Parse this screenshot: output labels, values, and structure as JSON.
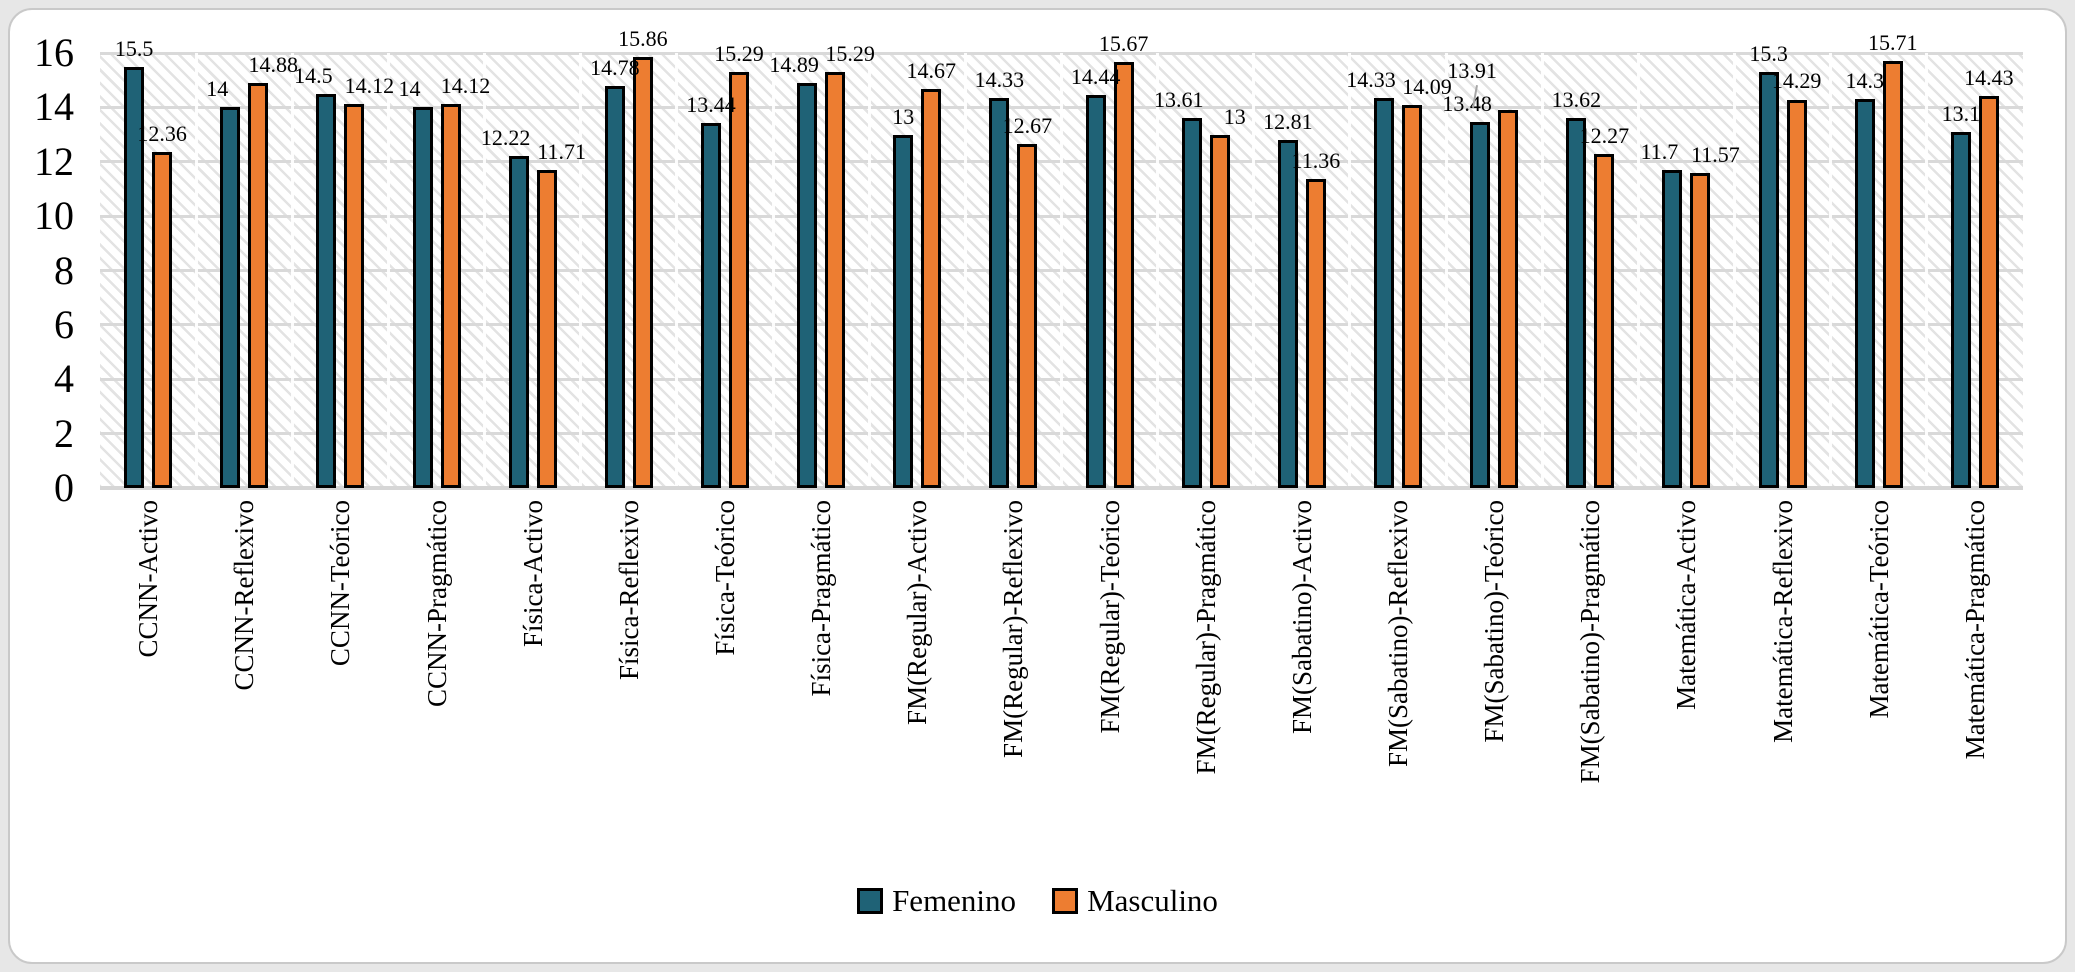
{
  "panel": {
    "background": "#ffffff",
    "outer_background": "#e7e7e7",
    "border_color": "#c9c9c9"
  },
  "chart_data": {
    "type": "bar",
    "title": "",
    "xlabel": "",
    "ylabel": "",
    "categories": [
      "CCNN-Activo",
      "CCNN-Reflexivo",
      "CCNN-Teórico",
      "CCNN-Pragmático",
      "Física-Activo",
      "Física-Reflexivo",
      "Física-Teórico",
      "Física-Pragmático",
      "FM(Regular)-Activo",
      "FM(Regular)-Reflexivo",
      "FM(Regular)-Teórico",
      "FM(Regular)-Pragmático",
      "FM(Sabatino)-Activo",
      "FM(Sabatino)-Reflexivo",
      "FM(Sabatino)-Teórico",
      "FM(Sabatino)-Pragmático",
      "Matemática-Activo",
      "Matemática-Reflexivo",
      "Matemática-Teórico",
      "Matemática-Pragmático"
    ],
    "series": [
      {
        "name": "Femenino",
        "color": "#1f6276",
        "values": [
          15.5,
          14,
          14.5,
          14,
          12.22,
          14.78,
          13.44,
          14.89,
          13,
          14.33,
          14.44,
          13.61,
          12.81,
          14.33,
          13.48,
          13.62,
          11.7,
          15.3,
          14.3,
          13.1
        ]
      },
      {
        "name": "Masculino",
        "color": "#ed7d31",
        "values": [
          12.36,
          14.88,
          14.12,
          14.12,
          11.71,
          15.86,
          15.29,
          15.29,
          14.67,
          12.67,
          15.67,
          13,
          11.36,
          14.09,
          13.91,
          12.27,
          11.57,
          14.29,
          15.71,
          14.43
        ]
      }
    ],
    "ylim": [
      0,
      16
    ],
    "yticks": [
      0,
      2,
      4,
      6,
      8,
      10,
      12,
      14,
      16
    ],
    "grid": true,
    "plot_area_fill": "light-diagonal-hatch",
    "bar_border_color": "#000000",
    "gridline_color": "#d9d9d9",
    "data_labels": true,
    "legend_position": "bottom",
    "callout": {
      "category_index": 14,
      "series_index": 1,
      "leader_color": "#a6a6a6"
    }
  }
}
